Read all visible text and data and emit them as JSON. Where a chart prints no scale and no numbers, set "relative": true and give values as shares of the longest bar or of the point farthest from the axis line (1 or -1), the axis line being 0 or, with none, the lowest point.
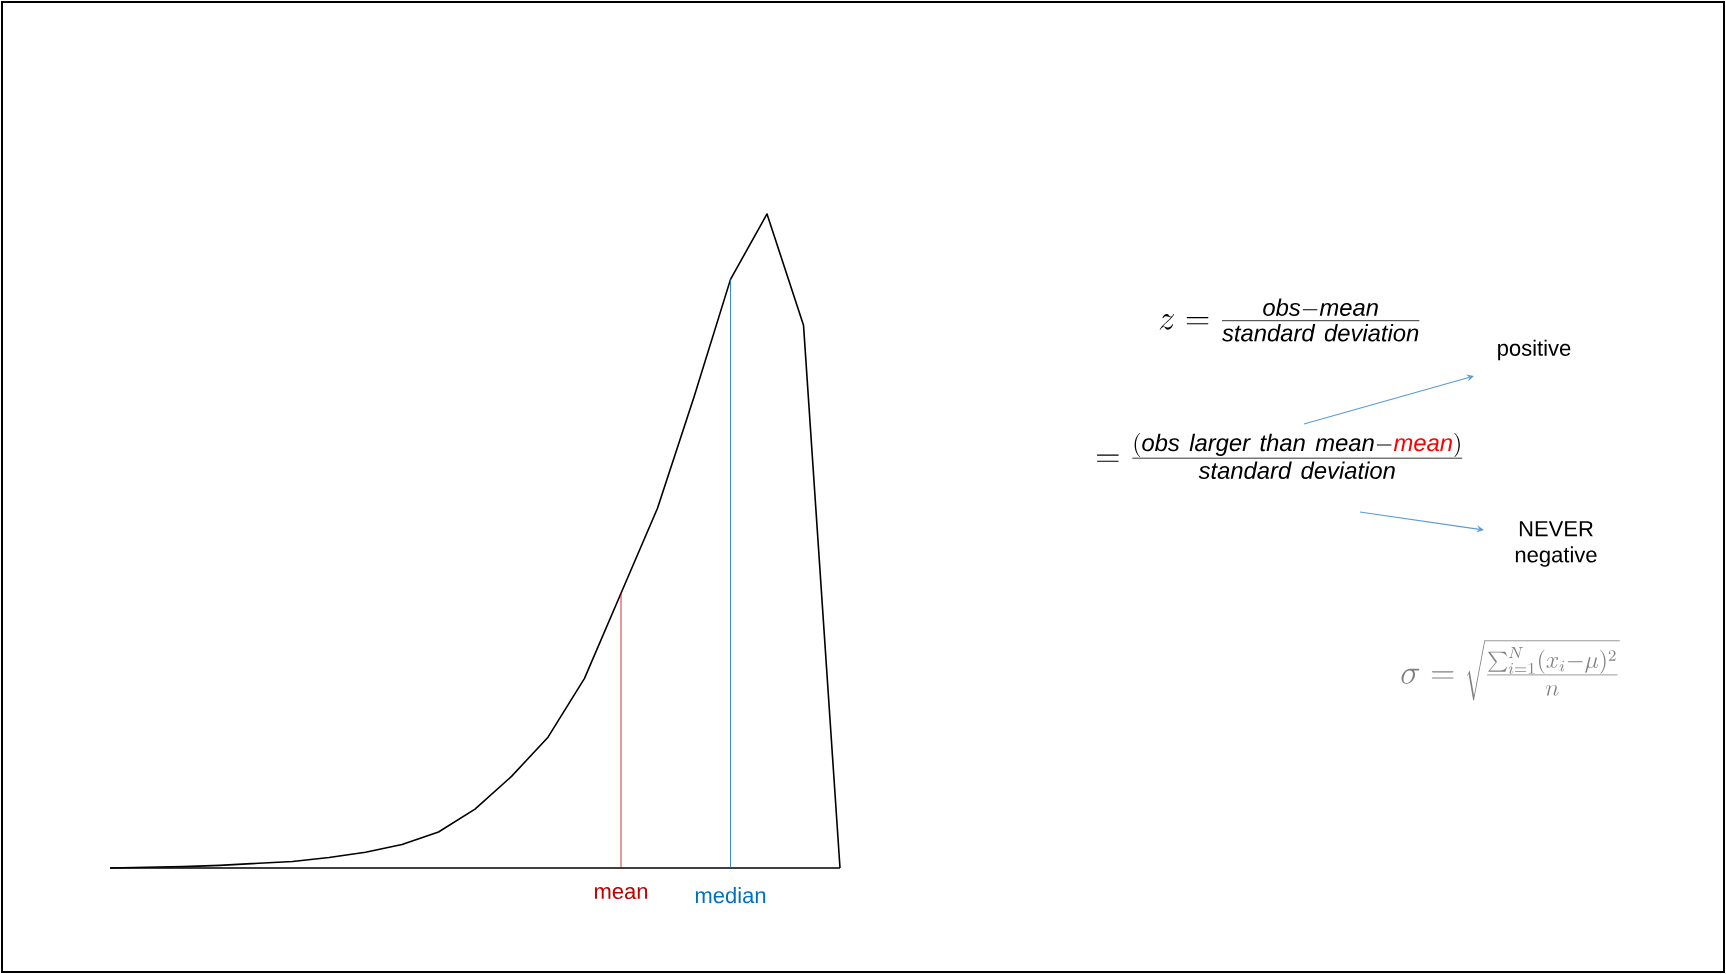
{
  "chart_data": {
    "type": "line",
    "relative": true,
    "categories": [
      null,
      null,
      null,
      null,
      null,
      null,
      null,
      null,
      null,
      null,
      null,
      null,
      null,
      null,
      null,
      null,
      null,
      null,
      null,
      null,
      null
    ],
    "series": [
      {
        "color": "#000000",
        "values": [
          0,
          0.001,
          0.002,
          0.004,
          0.007,
          0.01,
          0.016,
          0.024,
          0.036,
          0.055,
          0.09,
          0.14,
          0.2,
          0.29,
          0.42,
          0.55,
          0.72,
          0.9,
          1.0,
          0.83,
          0
        ]
      }
    ],
    "annotations": [
      "z=\\frac{\\mathit{obs}-\\mathit{mean}}{\\mathit{standard\\ deviation}}",
      "positive",
      "=\\frac{(\\mathit{obs\\ larger\\ than\\ mean}-\\textcolor{red}{\\mathit{mean}})}{\\mathit{standard\\ deviation}}",
      "NEVER negative",
      "\\sigma=\\sqrt{\\frac{\\sum_{i=1}^{N}(x_i-\\mu)^2}{n}}",
      "mean",
      "median"
    ],
    "marker": "none",
    "line_style": "solid",
    "legend": false
  }
}
